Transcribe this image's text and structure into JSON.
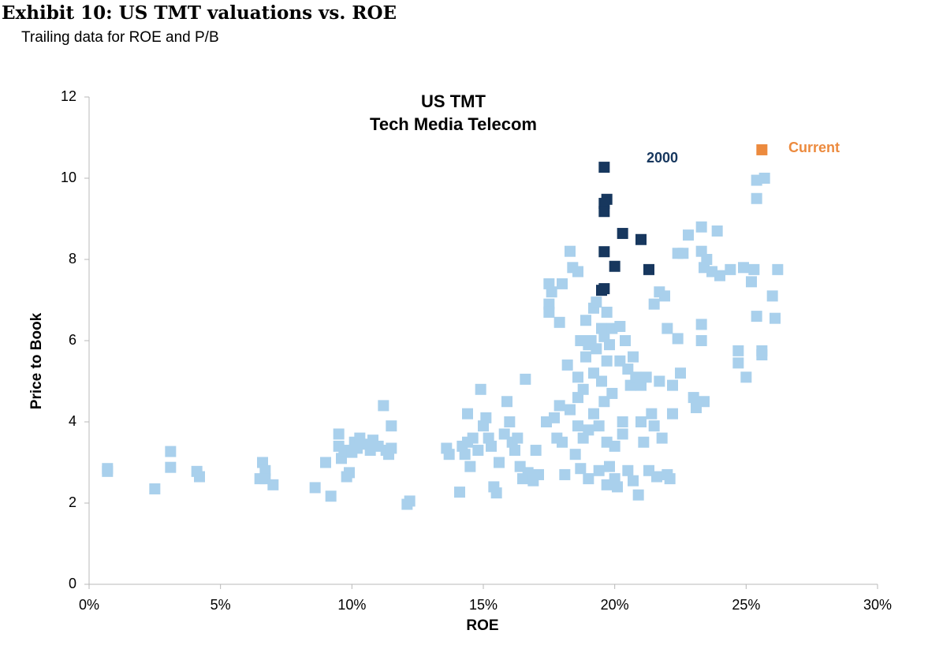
{
  "chart_data": {
    "type": "scatter",
    "title": "Exhibit 10: US TMT valuations vs. ROE",
    "subtitle": "Trailing data for ROE and P/B",
    "chart_title": [
      "US TMT",
      "Tech Media Telecom"
    ],
    "xlabel": "ROE",
    "ylabel": "Price to Book",
    "marker": "square",
    "xlim": [
      0,
      30
    ],
    "ylim": [
      0,
      12
    ],
    "xticks": [
      {
        "value": 0,
        "label": "0%"
      },
      {
        "value": 5,
        "label": "5%"
      },
      {
        "value": 10,
        "label": "10%"
      },
      {
        "value": 15,
        "label": "15%"
      },
      {
        "value": 20,
        "label": "20%"
      },
      {
        "value": 25,
        "label": "25%"
      },
      {
        "value": 30,
        "label": "30%"
      }
    ],
    "yticks": [
      0,
      2,
      4,
      6,
      8,
      10,
      12
    ],
    "grid": false,
    "series": [
      {
        "color": "#a9d0ec",
        "x": [
          0.7,
          0.7,
          2.5,
          3.1,
          3.1,
          4.1,
          4.2,
          6.5,
          6.6,
          6.7,
          6.7,
          7.0,
          8.6,
          9.0,
          9.2,
          9.5,
          9.5,
          9.6,
          9.7,
          9.8,
          9.9,
          10.0,
          10.1,
          10.2,
          10.3,
          10.5,
          10.7,
          10.8,
          11.0,
          11.2,
          11.3,
          11.4,
          11.5,
          11.5,
          12.1,
          12.2,
          13.6,
          13.7,
          14.1,
          14.2,
          14.3,
          14.4,
          14.4,
          14.5,
          14.6,
          14.8,
          14.9,
          15.0,
          15.1,
          15.2,
          15.3,
          15.4,
          15.5,
          15.6,
          15.8,
          15.9,
          16.0,
          16.1,
          16.2,
          16.3,
          16.4,
          16.5,
          16.6,
          16.7,
          16.9,
          17.0,
          17.1,
          17.4,
          17.5,
          17.5,
          17.5,
          17.6,
          17.7,
          17.8,
          17.9,
          17.9,
          18.0,
          18.0,
          18.1,
          18.2,
          18.3,
          18.3,
          18.4,
          18.5,
          18.6,
          18.6,
          18.6,
          18.6,
          18.7,
          18.7,
          18.8,
          18.8,
          18.9,
          18.9,
          19.0,
          19.0,
          19.0,
          19.1,
          19.2,
          19.2,
          19.2,
          19.3,
          19.3,
          19.4,
          19.4,
          19.5,
          19.5,
          19.6,
          19.6,
          19.7,
          19.7,
          19.7,
          19.7,
          19.8,
          19.8,
          19.9,
          19.9,
          20.0,
          20.0,
          20.1,
          20.2,
          20.2,
          20.3,
          20.3,
          20.4,
          20.5,
          20.5,
          20.6,
          20.7,
          20.7,
          20.8,
          20.9,
          21.0,
          21.0,
          21.1,
          21.2,
          21.3,
          21.4,
          21.5,
          21.5,
          21.6,
          21.7,
          21.7,
          21.8,
          21.9,
          22.0,
          22.0,
          22.1,
          22.2,
          22.2,
          22.4,
          22.4,
          22.5,
          22.6,
          22.8,
          23.0,
          23.1,
          23.3,
          23.3,
          23.3,
          23.3,
          23.4,
          23.4,
          23.5,
          23.7,
          23.9,
          24.0,
          24.4,
          24.7,
          24.7,
          24.9,
          25.0,
          25.2,
          25.3,
          25.4,
          25.4,
          25.4,
          25.6,
          25.6,
          25.7,
          26.0,
          26.1,
          26.2
        ],
        "values": [
          2.85,
          2.78,
          2.35,
          3.27,
          2.88,
          2.78,
          2.65,
          2.6,
          3.0,
          2.8,
          2.6,
          2.45,
          2.38,
          3.0,
          2.17,
          3.7,
          3.4,
          3.1,
          3.3,
          2.65,
          2.75,
          3.25,
          3.5,
          3.35,
          3.6,
          3.45,
          3.3,
          3.55,
          3.4,
          4.4,
          3.3,
          3.2,
          3.9,
          3.35,
          1.97,
          2.05,
          3.35,
          3.2,
          2.27,
          3.4,
          3.2,
          4.2,
          3.5,
          2.9,
          3.6,
          3.3,
          4.8,
          3.9,
          4.1,
          3.6,
          3.4,
          2.4,
          2.25,
          3.0,
          3.7,
          4.5,
          4.0,
          3.5,
          3.3,
          3.6,
          2.9,
          2.6,
          5.05,
          2.75,
          2.55,
          3.3,
          2.7,
          4.0,
          7.4,
          6.9,
          6.7,
          7.2,
          4.1,
          3.6,
          6.45,
          4.4,
          7.4,
          3.5,
          2.7,
          5.4,
          8.2,
          4.3,
          7.8,
          3.2,
          7.7,
          5.1,
          4.6,
          3.9,
          6.0,
          2.85,
          4.8,
          3.6,
          5.6,
          6.5,
          5.9,
          3.8,
          2.6,
          6.0,
          6.8,
          5.2,
          4.2,
          6.95,
          5.8,
          3.9,
          2.8,
          6.3,
          5.0,
          6.1,
          4.5,
          6.7,
          5.5,
          3.5,
          2.45,
          5.9,
          2.9,
          6.3,
          4.7,
          3.4,
          2.6,
          2.4,
          6.35,
          5.5,
          4.0,
          3.7,
          6.0,
          5.3,
          2.8,
          4.9,
          5.6,
          2.55,
          5.1,
          2.2,
          4.9,
          4.0,
          3.5,
          5.1,
          2.8,
          4.2,
          6.9,
          3.9,
          2.65,
          7.2,
          5.0,
          3.6,
          7.1,
          6.3,
          2.7,
          2.6,
          4.2,
          4.9,
          6.05,
          8.15,
          5.2,
          8.15,
          8.6,
          4.6,
          4.35,
          8.8,
          6.4,
          6.0,
          8.2,
          4.5,
          7.8,
          8.0,
          7.7,
          8.7,
          7.6,
          7.75,
          5.75,
          5.45,
          7.8,
          5.1,
          7.45,
          7.75,
          9.95,
          9.5,
          6.6,
          5.75,
          5.65,
          10.0,
          7.1,
          6.55,
          7.75
        ]
      },
      {
        "name": "2000",
        "color": "#17375e",
        "x": [
          19.6,
          19.7,
          19.6,
          19.6,
          20.3,
          21.0,
          19.6,
          20.0,
          21.3,
          19.6,
          19.5
        ],
        "values": [
          10.27,
          9.48,
          9.38,
          9.18,
          8.64,
          8.49,
          8.19,
          7.83,
          7.75,
          7.28,
          7.24
        ]
      },
      {
        "name": "Current",
        "color": "#ec8a3e",
        "x": [
          25.6
        ],
        "values": [
          10.7
        ]
      }
    ]
  }
}
